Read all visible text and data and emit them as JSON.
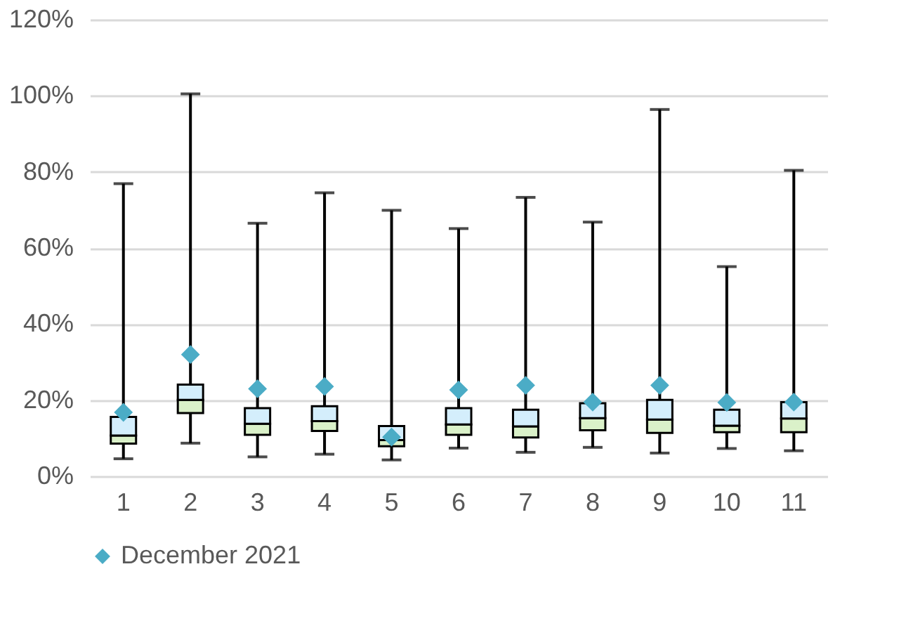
{
  "chart_data": {
    "type": "box",
    "categories": [
      "1",
      "2",
      "3",
      "4",
      "5",
      "6",
      "7",
      "8",
      "9",
      "10",
      "11"
    ],
    "boxes": [
      {
        "low": 4.6,
        "q1": 8.6,
        "median": 10.7,
        "q3": 15.6,
        "high": 76.9
      },
      {
        "low": 8.7,
        "q1": 16.6,
        "median": 20.1,
        "q3": 24.1,
        "high": 100.5
      },
      {
        "low": 5.1,
        "q1": 10.9,
        "median": 13.8,
        "q3": 17.9,
        "high": 66.5
      },
      {
        "low": 5.8,
        "q1": 11.9,
        "median": 14.5,
        "q3": 18.4,
        "high": 74.5
      },
      {
        "low": 4.3,
        "q1": 7.9,
        "median": 9.5,
        "q3": 13.2,
        "high": 69.9
      },
      {
        "low": 7.4,
        "q1": 10.9,
        "median": 13.6,
        "q3": 17.9,
        "high": 65.1
      },
      {
        "low": 6.3,
        "q1": 10.2,
        "median": 13.1,
        "q3": 17.5,
        "high": 73.3
      },
      {
        "low": 7.6,
        "q1": 12.1,
        "median": 15.3,
        "q3": 19.2,
        "high": 66.8
      },
      {
        "low": 6.1,
        "q1": 11.4,
        "median": 14.9,
        "q3": 20.1,
        "high": 96.4
      },
      {
        "low": 7.3,
        "q1": 11.6,
        "median": 13.3,
        "q3": 17.5,
        "high": 55.1
      },
      {
        "low": 6.7,
        "q1": 11.6,
        "median": 15.2,
        "q3": 19.5,
        "high": 80.4
      }
    ],
    "series": [
      {
        "name": "December 2021",
        "type": "scatter",
        "marker": "diamond",
        "color": "#4bacc6",
        "x": [
          "1",
          "2",
          "3",
          "4",
          "5",
          "6",
          "7",
          "8",
          "9",
          "10",
          "11"
        ],
        "values": [
          16.8,
          32,
          23,
          23.6,
          10.3,
          22.7,
          23.9,
          19.5,
          23.9,
          19.4,
          19.5
        ]
      }
    ],
    "ylim": [
      0,
      120
    ],
    "yticks": [
      {
        "value": 0,
        "label": "0%"
      },
      {
        "value": 20,
        "label": "20%"
      },
      {
        "value": 40,
        "label": "40%"
      },
      {
        "value": 60,
        "label": "60%"
      },
      {
        "value": 80,
        "label": "80%"
      },
      {
        "value": 100,
        "label": "100%"
      },
      {
        "value": 120,
        "label": "120%"
      }
    ],
    "grid": "y",
    "legend": "bottom"
  }
}
